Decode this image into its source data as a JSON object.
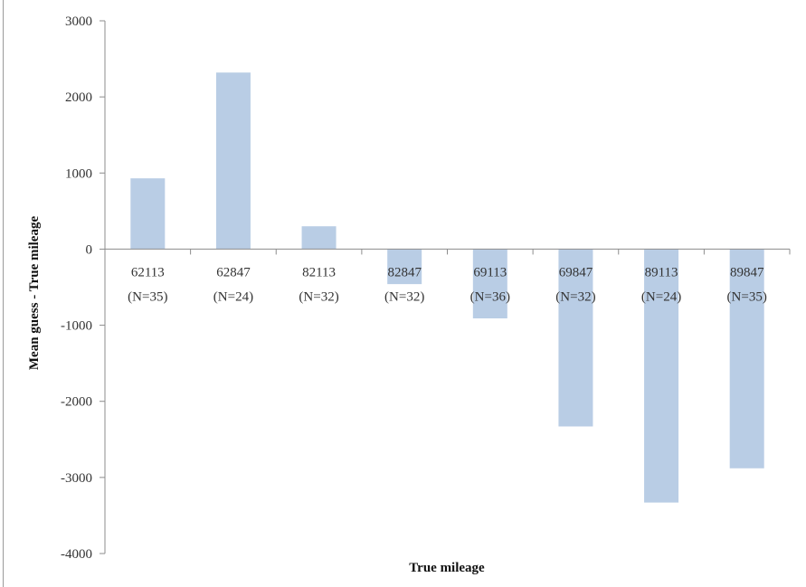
{
  "chart_data": {
    "type": "bar",
    "title": "",
    "xlabel": "True mileage",
    "ylabel": "Mean guess - True mileage",
    "ylim": [
      -4000,
      3000
    ],
    "yticks": [
      3000,
      2000,
      1000,
      0,
      -1000,
      -2000,
      -3000,
      -4000
    ],
    "categories": [
      {
        "value": "62113",
        "n": "(N=35)"
      },
      {
        "value": "62847",
        "n": "(N=24)"
      },
      {
        "value": "82113",
        "n": "(N=32)"
      },
      {
        "value": "82847",
        "n": "(N=32)"
      },
      {
        "value": "69113",
        "n": "(N=36)"
      },
      {
        "value": "69847",
        "n": "(N=32)"
      },
      {
        "value": "89113",
        "n": "(N=24)"
      },
      {
        "value": "89847",
        "n": "(N=35)"
      }
    ],
    "values": [
      930,
      2320,
      300,
      -460,
      -910,
      -2330,
      -3330,
      -2880
    ],
    "bar_color": "#b9cde5",
    "grid": false,
    "legend": "none"
  }
}
